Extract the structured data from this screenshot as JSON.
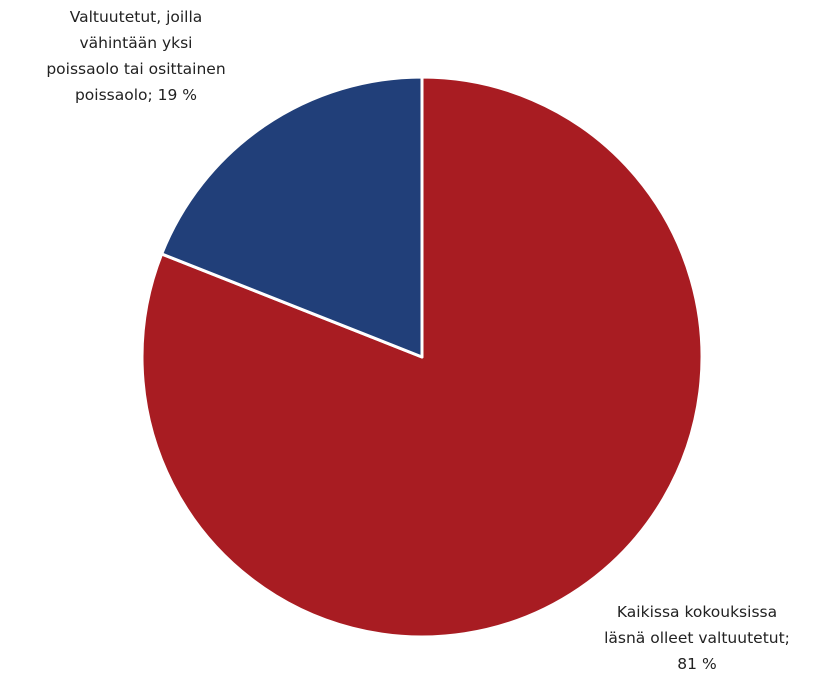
{
  "chart_data": {
    "type": "pie",
    "slices": [
      {
        "value": 81,
        "color": "#A81C22",
        "label_lines": [
          "Kaikissa kokouksissa",
          "läsnä olleet valtuutetut;",
          "81 %"
        ]
      },
      {
        "value": 19,
        "color": "#213F79",
        "label_lines": [
          "Valtuutetut, joilla",
          "vähintään yksi",
          "poissaolo tai osittainen",
          "poissaolo; 19 %"
        ]
      }
    ],
    "start_angle_deg": 0,
    "direction": "clockwise",
    "legend": "none"
  }
}
